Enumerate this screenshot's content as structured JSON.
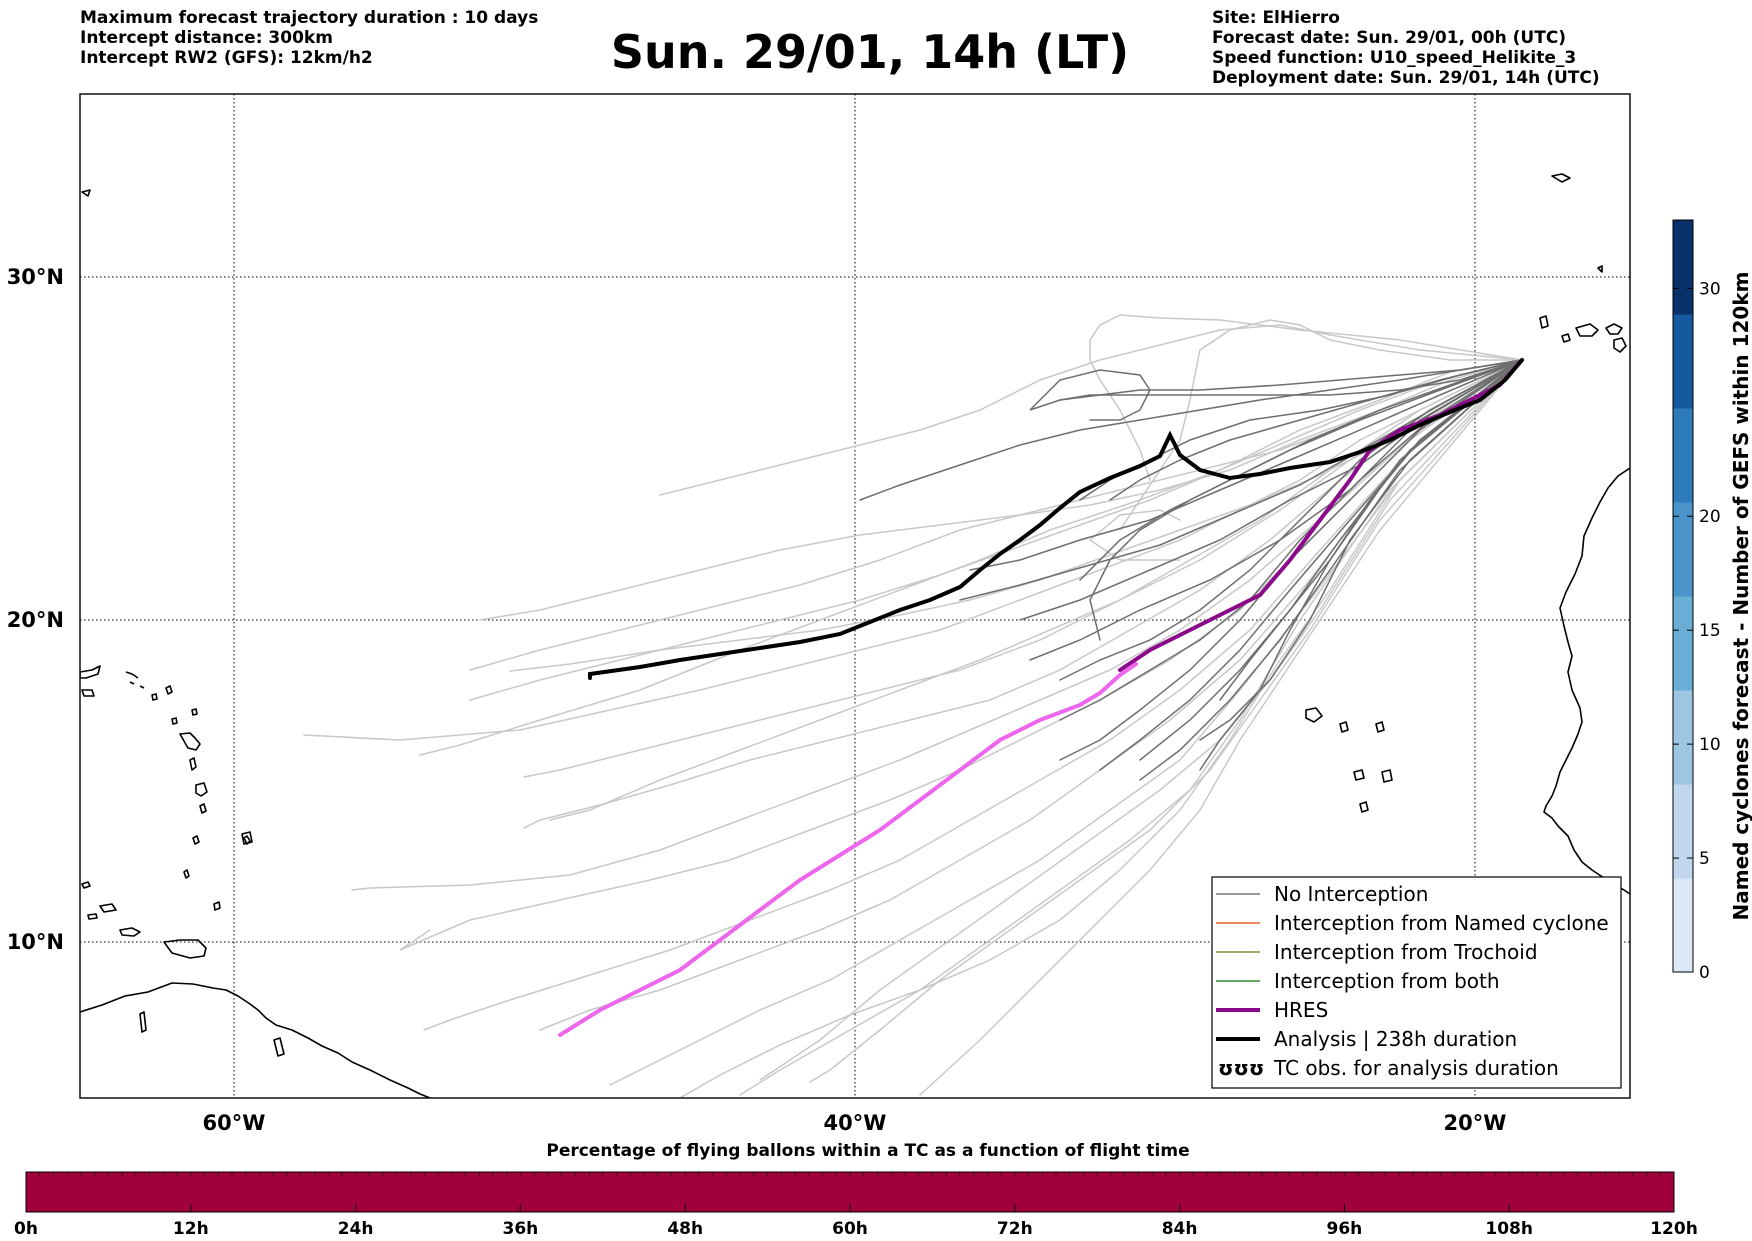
{
  "header": {
    "left": [
      "Maximum forecast trajectory duration : 10 days",
      "Intercept distance: 300km",
      "Intercept RW2 (GFS):  12km/h2"
    ],
    "title": "Sun. 29/01, 14h (LT)",
    "right": [
      "Site: ElHierro",
      "Forecast date: Sun. 29/01, 00h (UTC)",
      "Speed function: U10_speed_Helikite_3",
      "Deployment date: Sun. 29/01, 14h (UTC)"
    ]
  },
  "map": {
    "lat_labels": [
      "30°N",
      "20°N",
      "10°N"
    ],
    "lon_labels": [
      "60°W",
      "40°W",
      "20°W"
    ],
    "extent": {
      "lon_min": -65,
      "lon_max": -15,
      "lat_min": 5.4,
      "lat_max": 34.7
    },
    "gridlines": {
      "lons": [
        -60,
        -40,
        -20
      ],
      "lats": [
        30,
        20,
        10
      ]
    }
  },
  "legend": {
    "items": [
      {
        "label": "No Interception",
        "color": "#777777",
        "width": 1.5
      },
      {
        "label": "Interception from Named cyclone",
        "color": "#e8622a",
        "width": 1.5
      },
      {
        "label": "Interception from Trochoid",
        "color": "#8b8b2a",
        "width": 1.5
      },
      {
        "label": "Interception from both",
        "color": "#2e8b2e",
        "width": 1.5
      },
      {
        "label": "HRES",
        "color": "#8b0a8b",
        "width": 4
      },
      {
        "label": "Analysis | 238h duration",
        "color": "#000000",
        "width": 4
      },
      {
        "label": "TC obs. for analysis duration",
        "symbol": "ʊʊʊ"
      }
    ]
  },
  "colorbar": {
    "title": "Named cyclones forecast - Number of GEFS within 120km",
    "ticks": [
      "0",
      "5",
      "10",
      "15",
      "20",
      "30"
    ],
    "colors": [
      "#dbe8f5",
      "#c0d7ed",
      "#9dc6e3",
      "#6aaed6",
      "#4a94c9",
      "#2d7bbb",
      "#17599f",
      "#08306b"
    ]
  },
  "time_bar": {
    "title": "Percentage of flying ballons within a TC as a function of flight time",
    "ticks": [
      "0h",
      "12h",
      "24h",
      "36h",
      "48h",
      "60h",
      "72h",
      "84h",
      "96h",
      "108h",
      "120h"
    ],
    "color": "#a0003c"
  },
  "colors": {
    "gefs_light": "#c8c8c8",
    "gefs_dark": "#6e6e6e",
    "hres_early": "#8b0a8b",
    "hres_late": "#ee66ee",
    "analysis": "#000000"
  }
}
